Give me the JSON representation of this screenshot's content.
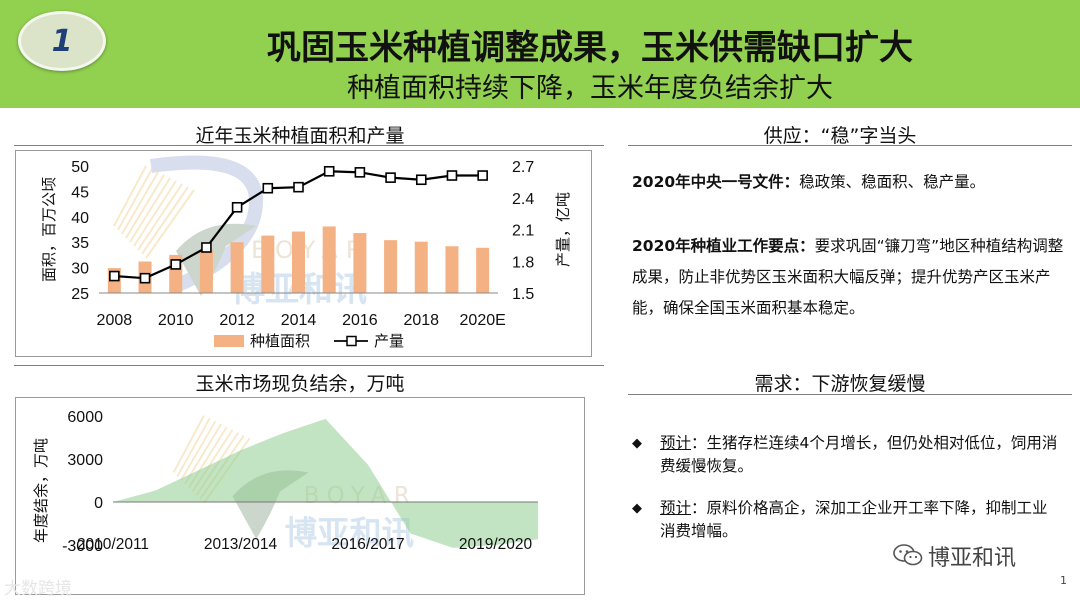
{
  "slide": {
    "number": "1",
    "title": "巩固玉米种植调整成果，玉米供需缺口扩大",
    "subtitle": "种植面积持续下降，玉米年度负结余扩大"
  },
  "left_top": {
    "section_title": "近年玉米种植面积和产量"
  },
  "left_bottom": {
    "section_title": "玉米市场现负结余，万吨"
  },
  "watermark": {
    "letters": "BOYAR",
    "chinese": "博亚和讯"
  },
  "supply": {
    "section_title": "供应：“稳”字当头",
    "p1_bold": "2020年中央一号文件：",
    "p1_text": "稳政策、稳面积、稳产量。",
    "p2_bold": "2020年种植业工作要点：",
    "p2_text": "要求巩固“镰刀弯”地区种植结构调整成果，防止非优势区玉米面积大幅反弹；提升优势产区玉米产能，确保全国玉米面积基本稳定。"
  },
  "demand": {
    "section_title": "需求：下游恢复缓慢",
    "bullet_symbol": "◆",
    "items": [
      {
        "lead": "预计",
        "text": "：生猪存栏连续4个月增长，但仍处相对低位，饲用消费缓慢恢复。"
      },
      {
        "lead": "预计",
        "text": "：原料价格高企，深加工企业开工率下降，抑制工业消费增幅。"
      }
    ]
  },
  "footer": {
    "brand": "博亚和讯",
    "page": "1",
    "corner_mark": "大数跨境"
  },
  "colors": {
    "header_bg": "#92d050",
    "bar": "#f4b183",
    "line": "#000000",
    "area": "#8fce8f"
  },
  "chart_data": [
    {
      "type": "bar",
      "title": "近年玉米种植面积和产量",
      "categories": [
        "2008",
        "2009",
        "2010",
        "2011",
        "2012",
        "2013",
        "2014",
        "2015",
        "2016",
        "2017",
        "2018",
        "2019",
        "2020E"
      ],
      "x_tick_labels": [
        "2008",
        "2010",
        "2012",
        "2014",
        "2016",
        "2018",
        "2020E"
      ],
      "series": [
        {
          "name": "种植面积",
          "type": "bar",
          "axis": "left",
          "values": [
            29.9,
            31.2,
            32.5,
            33.5,
            35.0,
            36.3,
            37.1,
            38.1,
            36.8,
            35.4,
            35.1,
            34.2,
            33.9
          ]
        },
        {
          "name": "产量",
          "type": "line",
          "axis": "right",
          "values": [
            1.66,
            1.64,
            1.77,
            1.93,
            2.31,
            2.49,
            2.5,
            2.65,
            2.64,
            2.59,
            2.57,
            2.61,
            2.61
          ]
        }
      ],
      "ylabel": "面积，百万公顷",
      "ylim": [
        25,
        50
      ],
      "yticks": [
        "25",
        "30",
        "35",
        "40",
        "45",
        "50"
      ],
      "y2label": "产量，亿吨",
      "y2lim": [
        1.5,
        2.7
      ],
      "y2ticks": [
        "1.5",
        "1.8",
        "2.1",
        "2.4",
        "2.7"
      ],
      "legend": [
        "种植面积",
        "产量"
      ],
      "legend_position": "bottom",
      "grid": false
    },
    {
      "type": "area",
      "title": "玉米市场现负结余，万吨",
      "categories": [
        "2010/2011",
        "2011/2012",
        "2012/2013",
        "2013/2014",
        "2014/2015",
        "2015/2016",
        "2016/2017",
        "2017/2018",
        "2018/2019",
        "2019/2020",
        "2020/2021"
      ],
      "x_tick_labels": [
        "2010/2011",
        "2013/2014",
        "2016/2017",
        "2019/2020"
      ],
      "series": [
        {
          "name": "年度结余",
          "values": [
            0,
            800,
            2200,
            3600,
            4800,
            5800,
            2600,
            -2200,
            -3200,
            -3000,
            -2600
          ]
        }
      ],
      "ylabel": "年度结余，万吨",
      "ylim": [
        -3000,
        6000
      ],
      "yticks": [
        "-3000",
        "0",
        "3000",
        "6000"
      ],
      "grid": false
    }
  ]
}
